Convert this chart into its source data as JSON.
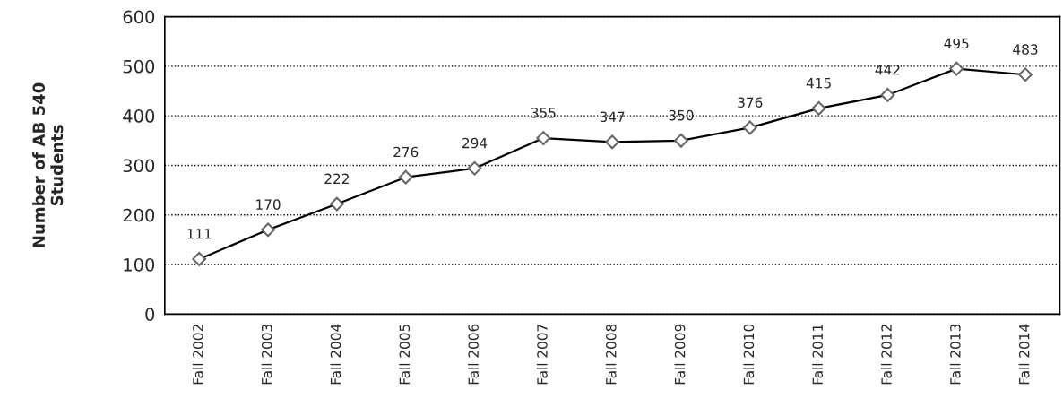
{
  "chart_data": {
    "type": "line",
    "ylabel": "Number of AB 540\nStudents",
    "categories": [
      "Fall 2002",
      "Fall 2003",
      "Fall 2004",
      "Fall 2005",
      "Fall 2006",
      "Fall 2007",
      "Fall 2008",
      "Fall 2009",
      "Fall 2010",
      "Fall 2011",
      "Fall 2012",
      "Fall 2013",
      "Fall 2014"
    ],
    "series": [
      {
        "color": "#000000",
        "values": [
          111,
          170,
          222,
          276,
          294,
          355,
          347,
          350,
          376,
          415,
          442,
          495,
          483
        ]
      }
    ],
    "ylim": [
      0,
      600
    ],
    "yticks": [
      0,
      100,
      200,
      300,
      400,
      500,
      600
    ],
    "grid": "y",
    "marker": "diamond",
    "line_style": "solid",
    "data_labels": true,
    "legend": false
  }
}
